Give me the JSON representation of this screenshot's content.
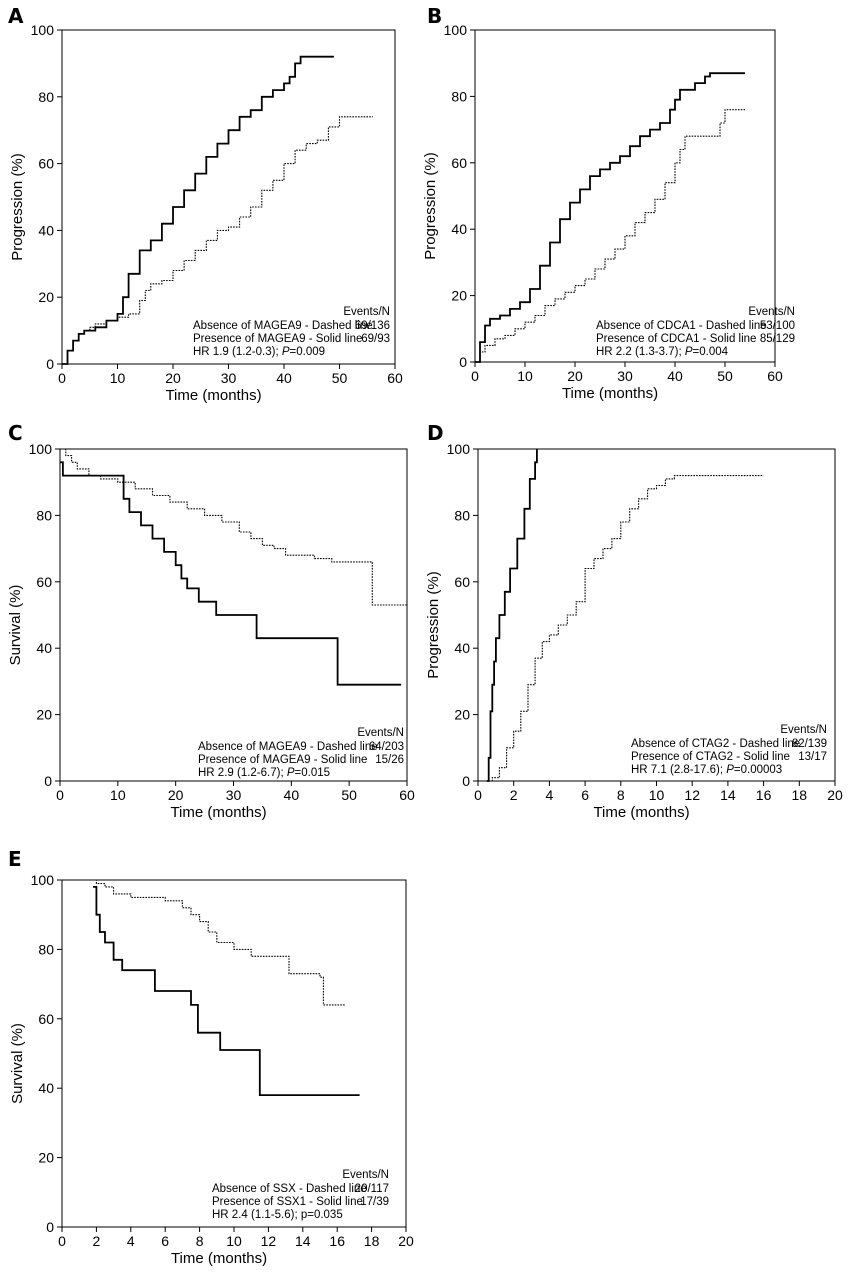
{
  "figure": {
    "title": ""
  },
  "chart_data": [
    {
      "panel": "A",
      "type": "line",
      "xlabel": "Time (months)",
      "ylabel": "Progression (%)",
      "xlim": [
        0,
        60
      ],
      "ylim": [
        0,
        100
      ],
      "xticks": [
        0,
        10,
        20,
        30,
        40,
        50,
        60
      ],
      "yticks": [
        0,
        20,
        40,
        60,
        80,
        100
      ],
      "legend": {
        "header": "Events/N",
        "rows": [
          {
            "label": "Absence of MAGEA9 - Dashed line",
            "value": "69/136"
          },
          {
            "label": "Presence of MAGEA9 - Solid line",
            "value": "69/93"
          },
          {
            "label": "HR 1.9 (1.2-0.3); P=0.009",
            "value": ""
          }
        ]
      },
      "series": [
        {
          "name": "Absence of MAGEA9",
          "style": "dashed",
          "x": [
            0,
            1,
            2,
            3,
            4,
            5,
            6,
            8,
            10,
            12,
            14,
            15,
            16,
            18,
            20,
            22,
            24,
            26,
            28,
            30,
            32,
            34,
            36,
            38,
            40,
            42,
            44,
            46,
            48,
            50,
            56
          ],
          "y": [
            0,
            4,
            7,
            9,
            10,
            11,
            12,
            13,
            14,
            15,
            19,
            22,
            24,
            25,
            28,
            31,
            34,
            37,
            40,
            41,
            44,
            47,
            52,
            55,
            60,
            64,
            66,
            67,
            71,
            74,
            74
          ]
        },
        {
          "name": "Presence of MAGEA9",
          "style": "solid",
          "x": [
            0,
            1,
            2,
            3,
            4,
            6,
            8,
            10,
            11,
            12,
            14,
            16,
            18,
            20,
            22,
            24,
            26,
            28,
            30,
            32,
            34,
            36,
            38,
            40,
            41,
            42,
            43,
            49
          ],
          "y": [
            0,
            4,
            7,
            9,
            10,
            11,
            13,
            15,
            20,
            27,
            34,
            37,
            42,
            47,
            52,
            57,
            62,
            66,
            70,
            74,
            76,
            80,
            82,
            84,
            86,
            90,
            92,
            92
          ]
        }
      ]
    },
    {
      "panel": "B",
      "type": "line",
      "xlabel": "Time (months)",
      "ylabel": "Progression (%)",
      "xlim": [
        0,
        60
      ],
      "ylim": [
        0,
        100
      ],
      "xticks": [
        0,
        10,
        20,
        30,
        40,
        50,
        60
      ],
      "yticks": [
        0,
        20,
        40,
        60,
        80,
        100
      ],
      "legend": {
        "header": "Events/N",
        "rows": [
          {
            "label": "Absence of CDCA1 - Dashed line",
            "value": "53/100"
          },
          {
            "label": "Presence of CDCA1 - Solid line",
            "value": "85/129"
          },
          {
            "label": "HR 2.2 (1.3-3.7); P=0.004",
            "value": ""
          }
        ]
      },
      "series": [
        {
          "name": "Absence of CDCA1",
          "style": "dashed",
          "x": [
            0,
            1,
            2,
            4,
            6,
            8,
            10,
            12,
            14,
            16,
            18,
            20,
            22,
            24,
            26,
            28,
            30,
            32,
            34,
            36,
            38,
            40,
            41,
            42,
            44,
            46,
            48,
            49,
            50,
            54
          ],
          "y": [
            0,
            3,
            5,
            7,
            8,
            10,
            12,
            14,
            17,
            19,
            21,
            23,
            25,
            28,
            31,
            34,
            38,
            42,
            45,
            49,
            54,
            60,
            64,
            68,
            68,
            68,
            68,
            72,
            76,
            76
          ]
        },
        {
          "name": "Presence of CDCA1",
          "style": "solid",
          "x": [
            0,
            1,
            2,
            3,
            5,
            7,
            9,
            11,
            13,
            15,
            17,
            19,
            21,
            23,
            25,
            27,
            29,
            31,
            33,
            35,
            37,
            39,
            40,
            41,
            44,
            46,
            47,
            54
          ],
          "y": [
            0,
            6,
            11,
            13,
            14,
            16,
            18,
            22,
            29,
            36,
            43,
            48,
            52,
            56,
            58,
            60,
            62,
            65,
            68,
            70,
            72,
            76,
            79,
            82,
            84,
            86,
            87,
            87
          ]
        }
      ]
    },
    {
      "panel": "C",
      "type": "line",
      "xlabel": "Time (months)",
      "ylabel": "Survival (%)",
      "xlim": [
        0,
        60
      ],
      "ylim": [
        0,
        100
      ],
      "xticks": [
        0,
        10,
        20,
        30,
        40,
        50,
        60
      ],
      "yticks": [
        0,
        20,
        40,
        60,
        80,
        100
      ],
      "legend": {
        "header": "Events/N",
        "rows": [
          {
            "label": "Absence of MAGEA9 - Dashed line",
            "value": "64/203"
          },
          {
            "label": "Presence of MAGEA9 - Solid line",
            "value": "15/26"
          },
          {
            "label": "HR 2.9 (1.2-6.7); P=0.015",
            "value": ""
          }
        ]
      },
      "series": [
        {
          "name": "Absence of MAGEA9",
          "style": "dashed",
          "x": [
            0,
            1,
            2,
            3,
            5,
            7,
            10,
            13,
            16,
            19,
            22,
            25,
            28,
            31,
            33,
            35,
            37,
            39,
            41,
            44,
            47,
            50,
            53,
            54,
            60
          ],
          "y": [
            100,
            98,
            96,
            94,
            92,
            91,
            90,
            88,
            86,
            84,
            82,
            80,
            78,
            75,
            73,
            71,
            70,
            68,
            68,
            67,
            66,
            66,
            66,
            53,
            53
          ]
        },
        {
          "name": "Presence of MAGEA9",
          "style": "solid",
          "x": [
            0,
            0.5,
            6,
            11,
            12,
            14,
            16,
            18,
            20,
            21,
            22,
            24,
            27,
            30,
            33,
            34,
            38,
            44,
            48,
            59
          ],
          "y": [
            96,
            92,
            92,
            85,
            81,
            77,
            73,
            69,
            65,
            61,
            58,
            54,
            50,
            50,
            50,
            43,
            43,
            43,
            29,
            29
          ]
        }
      ]
    },
    {
      "panel": "D",
      "type": "line",
      "xlabel": "Time (months)",
      "ylabel": "Progression (%)",
      "xlim": [
        0,
        20
      ],
      "ylim": [
        0,
        100
      ],
      "xticks": [
        0,
        2,
        4,
        6,
        8,
        10,
        12,
        14,
        16,
        18,
        20
      ],
      "yticks": [
        0,
        20,
        40,
        60,
        80,
        100
      ],
      "legend": {
        "header": "Events/N",
        "rows": [
          {
            "label": "Absence of CTAG2 - Dashed line",
            "value": "82/139"
          },
          {
            "label": "Presence of CTAG2 - Solid line",
            "value": "13/17"
          },
          {
            "label": "HR 7.1 (2.8-17.6); P=0.00003",
            "value": ""
          }
        ]
      },
      "series": [
        {
          "name": "Absence of CTAG2",
          "style": "dashed",
          "x": [
            0,
            0.8,
            1.2,
            1.6,
            2.0,
            2.4,
            2.8,
            3.2,
            3.6,
            4.0,
            4.5,
            5.0,
            5.5,
            6.0,
            6.5,
            7.0,
            7.5,
            8.0,
            8.5,
            9.0,
            9.5,
            10.0,
            10.5,
            11.0,
            16.0
          ],
          "y": [
            0,
            1,
            4,
            10,
            15,
            21,
            29,
            37,
            42,
            44,
            47,
            50,
            54,
            64,
            67,
            70,
            73,
            78,
            82,
            85,
            88,
            89,
            91,
            92,
            92
          ]
        },
        {
          "name": "Presence of CTAG2",
          "style": "solid",
          "x": [
            0.5,
            0.6,
            0.7,
            0.8,
            0.9,
            1.0,
            1.2,
            1.5,
            1.8,
            2.2,
            2.6,
            2.9,
            3.2,
            3.3
          ],
          "y": [
            0,
            7,
            21,
            29,
            36,
            43,
            50,
            57,
            64,
            73,
            82,
            91,
            96,
            100
          ]
        }
      ]
    },
    {
      "panel": "E",
      "type": "line",
      "xlabel": "Time (months)",
      "ylabel": "Survival (%)",
      "xlim": [
        0,
        20
      ],
      "ylim": [
        0,
        100
      ],
      "xticks": [
        0,
        2,
        4,
        6,
        8,
        10,
        12,
        14,
        16,
        18,
        20
      ],
      "yticks": [
        0,
        20,
        40,
        60,
        80,
        100
      ],
      "legend": {
        "header": "Events/N",
        "rows": [
          {
            "label": "Absence of SSX - Dashed line",
            "value": "20/117"
          },
          {
            "label": "Presence of SSX1 - Solid line",
            "value": "17/39"
          },
          {
            "label": "HR 2.4 (1.1-5.6); p=0.035",
            "value": ""
          }
        ]
      },
      "series": [
        {
          "name": "Absence of SSX",
          "style": "dashed",
          "x": [
            0,
            1.5,
            2,
            2.5,
            3,
            4,
            5,
            6,
            7,
            7.5,
            8,
            8.5,
            9,
            10,
            11,
            12,
            13,
            13.2,
            14,
            15,
            15.2,
            16.5
          ],
          "y": [
            100,
            100,
            99,
            98,
            96,
            95,
            95,
            94,
            92,
            90,
            88,
            85,
            82,
            80,
            78,
            78,
            78,
            73,
            73,
            72,
            64,
            64
          ]
        },
        {
          "name": "Presence of SSX1",
          "style": "solid",
          "x": [
            1.8,
            2.0,
            2.2,
            2.5,
            3.0,
            3.5,
            5.4,
            7.5,
            7.9,
            9.2,
            11.3,
            11.5,
            17.3
          ],
          "y": [
            98,
            90,
            85,
            82,
            77,
            74,
            68,
            64,
            56,
            51,
            51,
            38,
            38
          ]
        }
      ]
    }
  ]
}
